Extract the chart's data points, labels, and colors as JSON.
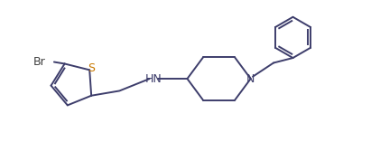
{
  "bg_color": "#ffffff",
  "line_color": "#3d3d6b",
  "label_color_hn": "#3d3d6b",
  "label_color_n": "#3d3d6b",
  "label_color_s": "#c87800",
  "label_color_br": "#404040",
  "line_width": 1.4,
  "figsize": [
    4.11,
    1.78
  ],
  "dpi": 100,
  "xlim": [
    0.0,
    10.5
  ],
  "ylim": [
    0.5,
    4.8
  ]
}
